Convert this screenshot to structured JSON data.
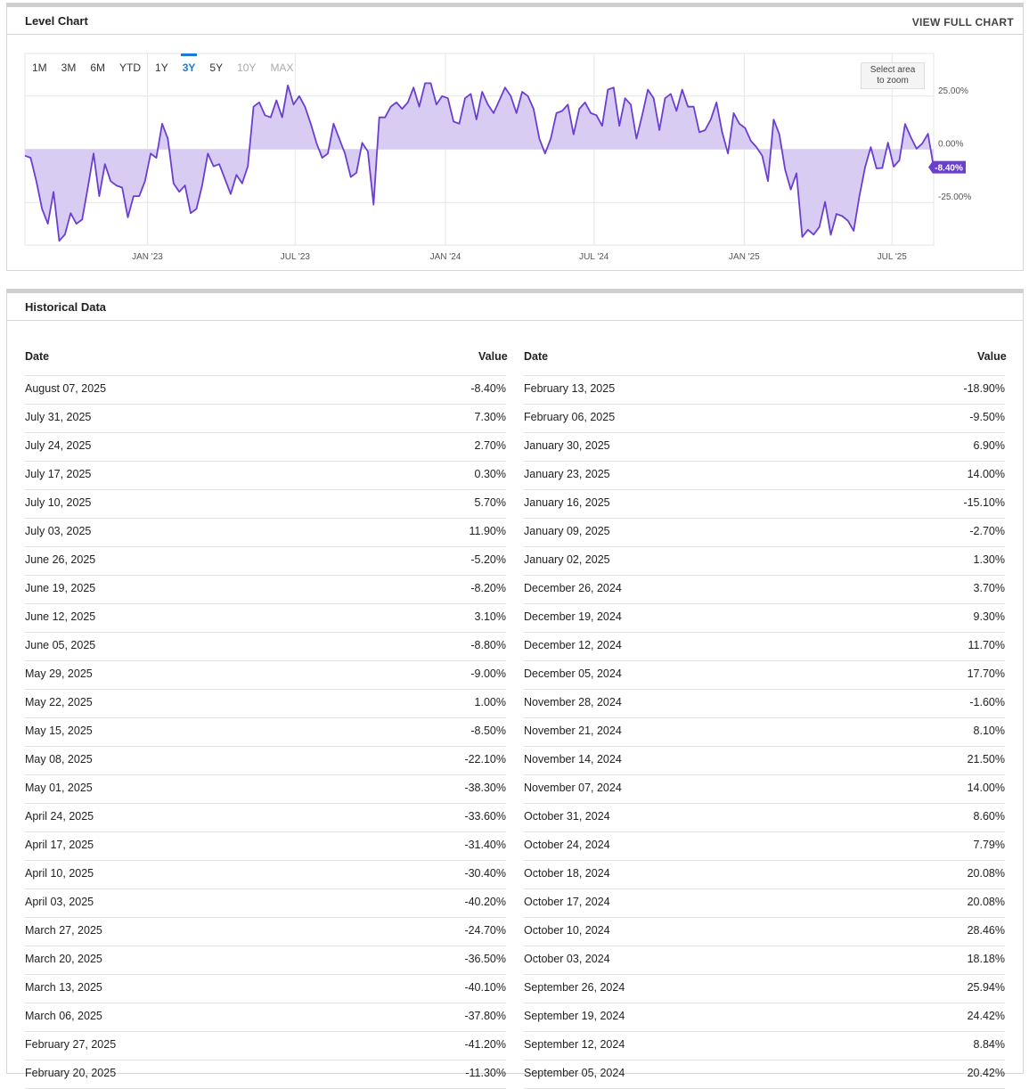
{
  "level_chart": {
    "title": "Level Chart",
    "view_full_link": "VIEW FULL CHART",
    "zoom_hint_line1": "Select area",
    "zoom_hint_line2": "to zoom",
    "range_tabs": [
      {
        "label": "1M",
        "state": "normal"
      },
      {
        "label": "3M",
        "state": "normal"
      },
      {
        "label": "6M",
        "state": "normal"
      },
      {
        "label": "YTD",
        "state": "normal"
      },
      {
        "label": "1Y",
        "state": "normal"
      },
      {
        "label": "3Y",
        "state": "active"
      },
      {
        "label": "5Y",
        "state": "normal"
      },
      {
        "label": "10Y",
        "state": "disabled"
      },
      {
        "label": "MAX",
        "state": "disabled"
      }
    ]
  },
  "chart_data": {
    "type": "area",
    "ylim": [
      -45,
      45
    ],
    "y_ticks": [
      {
        "value": 25,
        "label": "25.00%"
      },
      {
        "value": 0,
        "label": "0.00%"
      },
      {
        "value": -25,
        "label": "-25.00%"
      }
    ],
    "x_ticks": [
      {
        "label": "JAN '23",
        "date": "2023-01-01"
      },
      {
        "label": "JUL '23",
        "date": "2023-07-01"
      },
      {
        "label": "JAN '24",
        "date": "2024-01-01"
      },
      {
        "label": "JUL '24",
        "date": "2024-07-01"
      },
      {
        "label": "JAN '25",
        "date": "2025-01-01"
      },
      {
        "label": "JUL '25",
        "date": "2025-07-01"
      }
    ],
    "x_range": [
      "2022-08-04",
      "2025-08-07"
    ],
    "last_value_label": "-8.40%",
    "line_color": "#6a3fd0",
    "fill_color": "#d9ccf3",
    "series": [
      {
        "values": [
          [
            "2022-08-04",
            -3
          ],
          [
            "2022-08-11",
            -4
          ],
          [
            "2022-08-18",
            -15
          ],
          [
            "2022-08-25",
            -28
          ],
          [
            "2022-09-01",
            -35
          ],
          [
            "2022-09-08",
            -20
          ],
          [
            "2022-09-15",
            -43
          ],
          [
            "2022-09-22",
            -40
          ],
          [
            "2022-09-29",
            -30
          ],
          [
            "2022-10-06",
            -35
          ],
          [
            "2022-10-13",
            -33
          ],
          [
            "2022-10-20",
            -18
          ],
          [
            "2022-10-27",
            -2
          ],
          [
            "2022-11-03",
            -22
          ],
          [
            "2022-11-10",
            -7
          ],
          [
            "2022-11-17",
            -15
          ],
          [
            "2022-11-24",
            -17
          ],
          [
            "2022-12-01",
            -18
          ],
          [
            "2022-12-08",
            -32
          ],
          [
            "2022-12-15",
            -22
          ],
          [
            "2022-12-22",
            -22
          ],
          [
            "2022-12-29",
            -15
          ],
          [
            "2023-01-05",
            -2
          ],
          [
            "2023-01-12",
            -4
          ],
          [
            "2023-01-19",
            12
          ],
          [
            "2023-01-26",
            5
          ],
          [
            "2023-02-02",
            -16
          ],
          [
            "2023-02-09",
            -20
          ],
          [
            "2023-02-16",
            -17
          ],
          [
            "2023-02-23",
            -30
          ],
          [
            "2023-03-02",
            -28
          ],
          [
            "2023-03-09",
            -17
          ],
          [
            "2023-03-16",
            -2
          ],
          [
            "2023-03-23",
            -8
          ],
          [
            "2023-03-30",
            -7
          ],
          [
            "2023-04-06",
            -14
          ],
          [
            "2023-04-13",
            -21
          ],
          [
            "2023-04-20",
            -12
          ],
          [
            "2023-04-27",
            -16
          ],
          [
            "2023-05-04",
            -8
          ],
          [
            "2023-05-11",
            20
          ],
          [
            "2023-05-18",
            22
          ],
          [
            "2023-05-25",
            16
          ],
          [
            "2023-06-01",
            15
          ],
          [
            "2023-06-08",
            23
          ],
          [
            "2023-06-15",
            15
          ],
          [
            "2023-06-22",
            30
          ],
          [
            "2023-06-29",
            21
          ],
          [
            "2023-07-06",
            25
          ],
          [
            "2023-07-13",
            20
          ],
          [
            "2023-07-20",
            12
          ],
          [
            "2023-07-27",
            3
          ],
          [
            "2023-08-03",
            -4
          ],
          [
            "2023-08-10",
            -2
          ],
          [
            "2023-08-17",
            12
          ],
          [
            "2023-08-24",
            5
          ],
          [
            "2023-08-31",
            -2
          ],
          [
            "2023-09-07",
            -13
          ],
          [
            "2023-09-14",
            -11
          ],
          [
            "2023-09-21",
            3
          ],
          [
            "2023-09-28",
            -1
          ],
          [
            "2023-10-05",
            -26
          ],
          [
            "2023-10-12",
            15
          ],
          [
            "2023-10-19",
            15
          ],
          [
            "2023-10-26",
            20
          ],
          [
            "2023-11-02",
            22
          ],
          [
            "2023-11-09",
            19
          ],
          [
            "2023-11-16",
            22
          ],
          [
            "2023-11-23",
            29
          ],
          [
            "2023-11-30",
            20
          ],
          [
            "2023-12-07",
            31
          ],
          [
            "2023-12-14",
            31
          ],
          [
            "2023-12-21",
            21
          ],
          [
            "2023-12-28",
            25
          ],
          [
            "2024-01-04",
            24
          ],
          [
            "2024-01-11",
            13
          ],
          [
            "2024-01-18",
            12
          ],
          [
            "2024-01-25",
            24
          ],
          [
            "2024-02-01",
            26
          ],
          [
            "2024-02-08",
            14
          ],
          [
            "2024-02-15",
            27
          ],
          [
            "2024-02-22",
            21
          ],
          [
            "2024-02-29",
            17
          ],
          [
            "2024-03-07",
            23
          ],
          [
            "2024-03-14",
            29
          ],
          [
            "2024-03-21",
            25
          ],
          [
            "2024-03-28",
            17
          ],
          [
            "2024-04-04",
            27
          ],
          [
            "2024-04-11",
            25
          ],
          [
            "2024-04-18",
            19
          ],
          [
            "2024-04-25",
            5
          ],
          [
            "2024-05-02",
            -2
          ],
          [
            "2024-05-09",
            5
          ],
          [
            "2024-05-16",
            17
          ],
          [
            "2024-05-23",
            18
          ],
          [
            "2024-05-30",
            21
          ],
          [
            "2024-06-06",
            7
          ],
          [
            "2024-06-13",
            19
          ],
          [
            "2024-06-20",
            22
          ],
          [
            "2024-06-27",
            17
          ],
          [
            "2024-07-04",
            16
          ],
          [
            "2024-07-11",
            11
          ],
          [
            "2024-07-18",
            28
          ],
          [
            "2024-07-25",
            29
          ],
          [
            "2024-08-01",
            11
          ],
          [
            "2024-08-08",
            24
          ],
          [
            "2024-08-15",
            21
          ],
          [
            "2024-08-22",
            5
          ],
          [
            "2024-08-29",
            16
          ],
          [
            "2024-09-05",
            28
          ],
          [
            "2024-09-12",
            24
          ],
          [
            "2024-09-19",
            9
          ],
          [
            "2024-09-26",
            24
          ],
          [
            "2024-10-03",
            26
          ],
          [
            "2024-10-10",
            18
          ],
          [
            "2024-10-17",
            28
          ],
          [
            "2024-10-24",
            20
          ],
          [
            "2024-10-31",
            20
          ],
          [
            "2024-11-07",
            8
          ],
          [
            "2024-11-14",
            9
          ],
          [
            "2024-11-21",
            14
          ],
          [
            "2024-11-28",
            22
          ],
          [
            "2024-12-05",
            8
          ],
          [
            "2024-12-12",
            -2
          ],
          [
            "2024-12-19",
            17
          ],
          [
            "2024-12-26",
            12
          ],
          [
            "2025-01-02",
            10
          ],
          [
            "2025-01-09",
            4
          ],
          [
            "2025-01-16",
            1
          ],
          [
            "2025-01-23",
            -3
          ],
          [
            "2025-01-30",
            -15
          ],
          [
            "2025-02-06",
            14
          ],
          [
            "2025-02-13",
            7
          ],
          [
            "2025-02-20",
            -9.5
          ],
          [
            "2025-02-27",
            -18.9
          ],
          [
            "2025-03-06",
            -11.3
          ],
          [
            "2025-03-13",
            -41.2
          ],
          [
            "2025-03-20",
            -37.8
          ],
          [
            "2025-03-27",
            -40.1
          ],
          [
            "2025-04-03",
            -36.5
          ],
          [
            "2025-04-10",
            -24.7
          ],
          [
            "2025-04-17",
            -40.2
          ],
          [
            "2025-04-24",
            -30.4
          ],
          [
            "2025-05-01",
            -31.4
          ],
          [
            "2025-05-08",
            -33.6
          ],
          [
            "2025-05-15",
            -38.3
          ],
          [
            "2025-05-22",
            -22.1
          ],
          [
            "2025-05-29",
            -8.5
          ],
          [
            "2025-06-05",
            1.0
          ],
          [
            "2025-06-12",
            -9.0
          ],
          [
            "2025-06-19",
            -8.8
          ],
          [
            "2025-06-26",
            3.1
          ],
          [
            "2025-07-03",
            -8.2
          ],
          [
            "2025-07-10",
            -5.2
          ],
          [
            "2025-07-17",
            11.9
          ],
          [
            "2025-07-24",
            5.7
          ],
          [
            "2025-07-31",
            0.3
          ],
          [
            "2025-08-07",
            2.7
          ],
          [
            "2025-08-14",
            7.3
          ],
          [
            "2025-08-21",
            -8.4
          ]
        ]
      }
    ]
  },
  "historical": {
    "title": "Historical Data",
    "date_header": "Date",
    "value_header": "Value",
    "left_rows": [
      {
        "date": "August 07, 2025",
        "value": "-8.40%"
      },
      {
        "date": "July 31, 2025",
        "value": "7.30%"
      },
      {
        "date": "July 24, 2025",
        "value": "2.70%"
      },
      {
        "date": "July 17, 2025",
        "value": "0.30%"
      },
      {
        "date": "July 10, 2025",
        "value": "5.70%"
      },
      {
        "date": "July 03, 2025",
        "value": "11.90%"
      },
      {
        "date": "June 26, 2025",
        "value": "-5.20%"
      },
      {
        "date": "June 19, 2025",
        "value": "-8.20%"
      },
      {
        "date": "June 12, 2025",
        "value": "3.10%"
      },
      {
        "date": "June 05, 2025",
        "value": "-8.80%"
      },
      {
        "date": "May 29, 2025",
        "value": "-9.00%"
      },
      {
        "date": "May 22, 2025",
        "value": "1.00%"
      },
      {
        "date": "May 15, 2025",
        "value": "-8.50%"
      },
      {
        "date": "May 08, 2025",
        "value": "-22.10%"
      },
      {
        "date": "May 01, 2025",
        "value": "-38.30%"
      },
      {
        "date": "April 24, 2025",
        "value": "-33.60%"
      },
      {
        "date": "April 17, 2025",
        "value": "-31.40%"
      },
      {
        "date": "April 10, 2025",
        "value": "-30.40%"
      },
      {
        "date": "April 03, 2025",
        "value": "-40.20%"
      },
      {
        "date": "March 27, 2025",
        "value": "-24.70%"
      },
      {
        "date": "March 20, 2025",
        "value": "-36.50%"
      },
      {
        "date": "March 13, 2025",
        "value": "-40.10%"
      },
      {
        "date": "March 06, 2025",
        "value": "-37.80%"
      },
      {
        "date": "February 27, 2025",
        "value": "-41.20%"
      },
      {
        "date": "February 20, 2025",
        "value": "-11.30%"
      }
    ],
    "right_rows": [
      {
        "date": "February 13, 2025",
        "value": "-18.90%"
      },
      {
        "date": "February 06, 2025",
        "value": "-9.50%"
      },
      {
        "date": "January 30, 2025",
        "value": "6.90%"
      },
      {
        "date": "January 23, 2025",
        "value": "14.00%"
      },
      {
        "date": "January 16, 2025",
        "value": "-15.10%"
      },
      {
        "date": "January 09, 2025",
        "value": "-2.70%"
      },
      {
        "date": "January 02, 2025",
        "value": "1.30%"
      },
      {
        "date": "December 26, 2024",
        "value": "3.70%"
      },
      {
        "date": "December 19, 2024",
        "value": "9.30%"
      },
      {
        "date": "December 12, 2024",
        "value": "11.70%"
      },
      {
        "date": "December 05, 2024",
        "value": "17.70%"
      },
      {
        "date": "November 28, 2024",
        "value": "-1.60%"
      },
      {
        "date": "November 21, 2024",
        "value": "8.10%"
      },
      {
        "date": "November 14, 2024",
        "value": "21.50%"
      },
      {
        "date": "November 07, 2024",
        "value": "14.00%"
      },
      {
        "date": "October 31, 2024",
        "value": "8.60%"
      },
      {
        "date": "October 24, 2024",
        "value": "7.79%"
      },
      {
        "date": "October 18, 2024",
        "value": "20.08%"
      },
      {
        "date": "October 17, 2024",
        "value": "20.08%"
      },
      {
        "date": "October 10, 2024",
        "value": "28.46%"
      },
      {
        "date": "October 03, 2024",
        "value": "18.18%"
      },
      {
        "date": "September 26, 2024",
        "value": "25.94%"
      },
      {
        "date": "September 19, 2024",
        "value": "24.42%"
      },
      {
        "date": "September 12, 2024",
        "value": "8.84%"
      },
      {
        "date": "September 05, 2024",
        "value": "20.42%"
      }
    ]
  }
}
